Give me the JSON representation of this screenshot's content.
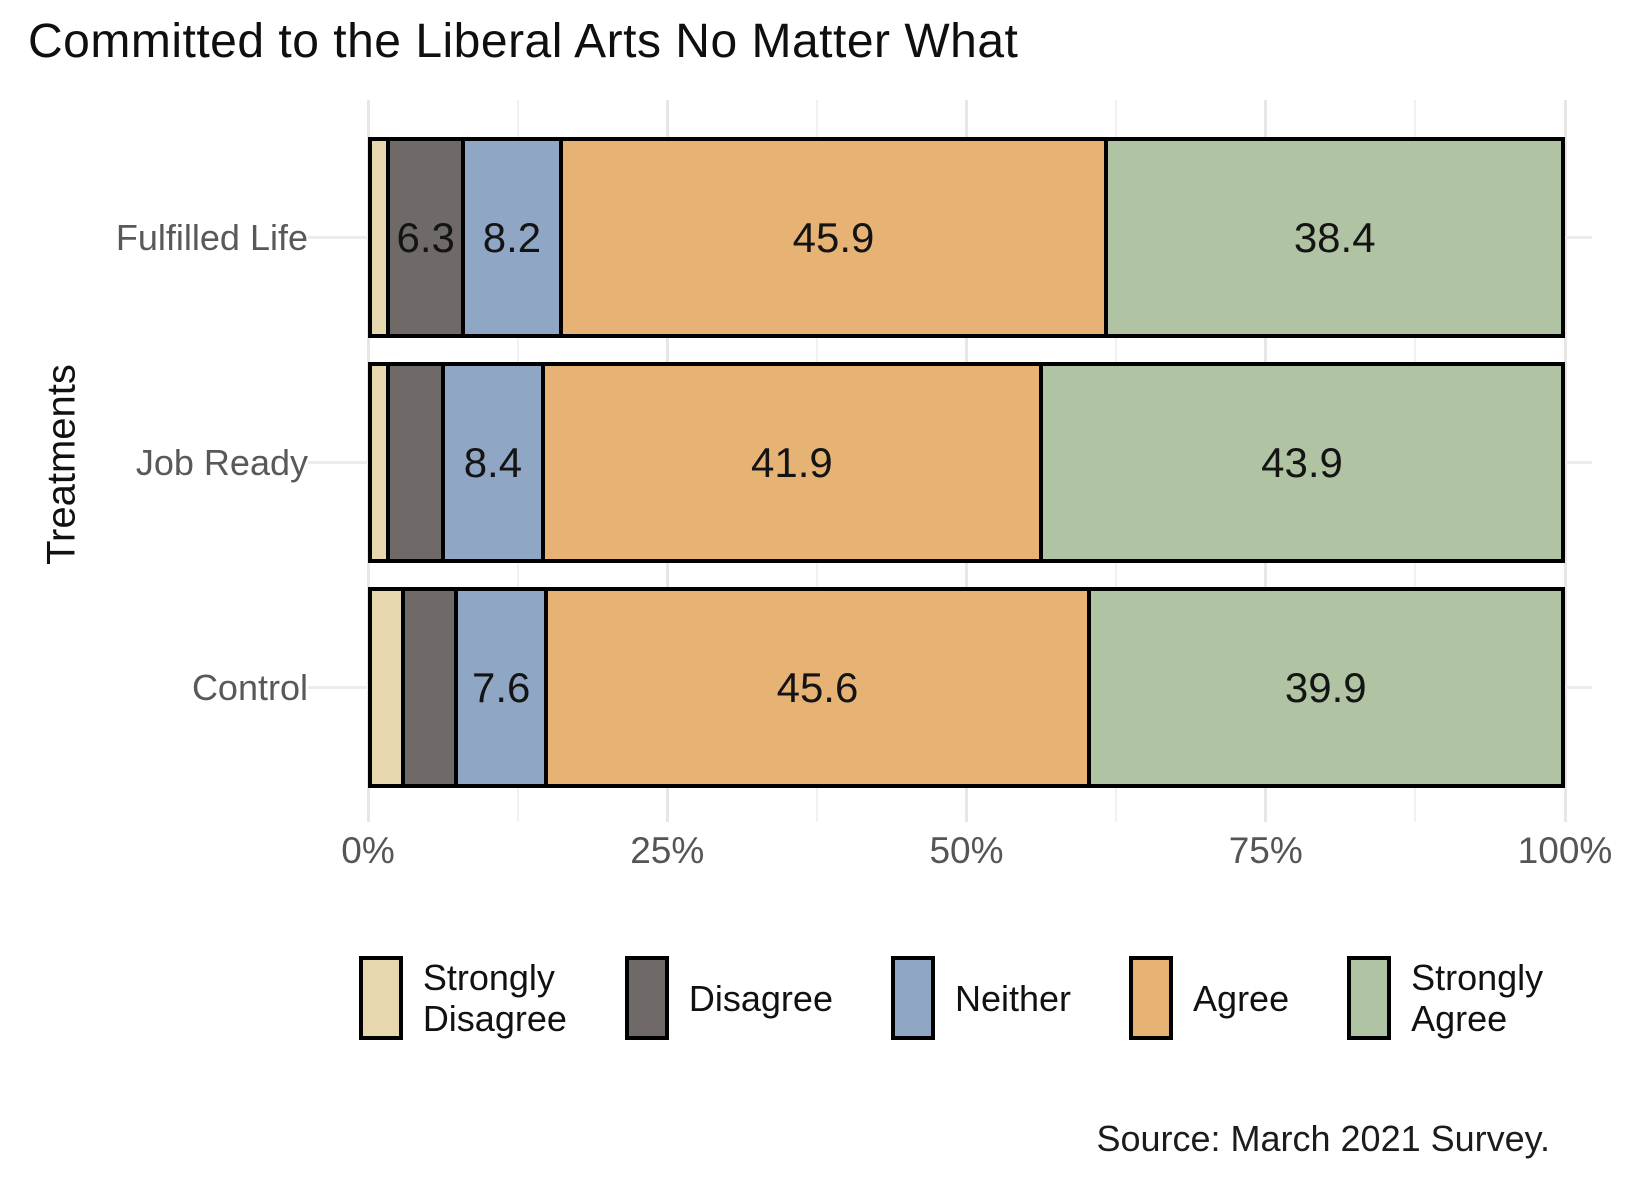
{
  "chart_data": {
    "type": "bar",
    "orientation": "horizontal_stacked",
    "title": "Committed to the Liberal Arts No Matter What",
    "ylabel": "Treatments",
    "xlabel": "",
    "xlim": [
      0,
      100
    ],
    "grid": "on",
    "legend_position": "bottom",
    "categories": [
      "Fulfilled Life",
      "Job Ready",
      "Control"
    ],
    "series": [
      {
        "name": "Strongly Disagree",
        "legend_label": "Strongly\nDisagree",
        "color": "#e6d7ae",
        "values": [
          1.2,
          1.2,
          2.4
        ],
        "labels": [
          "",
          "",
          ""
        ]
      },
      {
        "name": "Disagree",
        "legend_label": "Disagree",
        "color": "#6f6a68",
        "values": [
          6.3,
          4.6,
          4.5
        ],
        "labels": [
          "6.3",
          "",
          ""
        ]
      },
      {
        "name": "Neither",
        "legend_label": "Neither",
        "color": "#8fa7c5",
        "values": [
          8.2,
          8.4,
          7.6
        ],
        "labels": [
          "8.2",
          "8.4",
          "7.6"
        ]
      },
      {
        "name": "Agree",
        "legend_label": "Agree",
        "color": "#e7b374",
        "values": [
          45.9,
          41.9,
          45.6
        ],
        "labels": [
          "45.9",
          "41.9",
          "45.6"
        ]
      },
      {
        "name": "Strongly Agree",
        "legend_label": "Strongly\nAgree",
        "color": "#b0c3a3",
        "values": [
          38.4,
          43.9,
          39.9
        ],
        "labels": [
          "38.4",
          "43.9",
          "39.9"
        ]
      }
    ],
    "x_ticks": {
      "positions": [
        0,
        25,
        50,
        75,
        100
      ],
      "labels": [
        "0%",
        "25%",
        "50%",
        "75%",
        "100%"
      ],
      "minor_positions": [
        12.5,
        37.5,
        62.5,
        87.5
      ]
    },
    "source": "Source: March 2021 Survey."
  }
}
